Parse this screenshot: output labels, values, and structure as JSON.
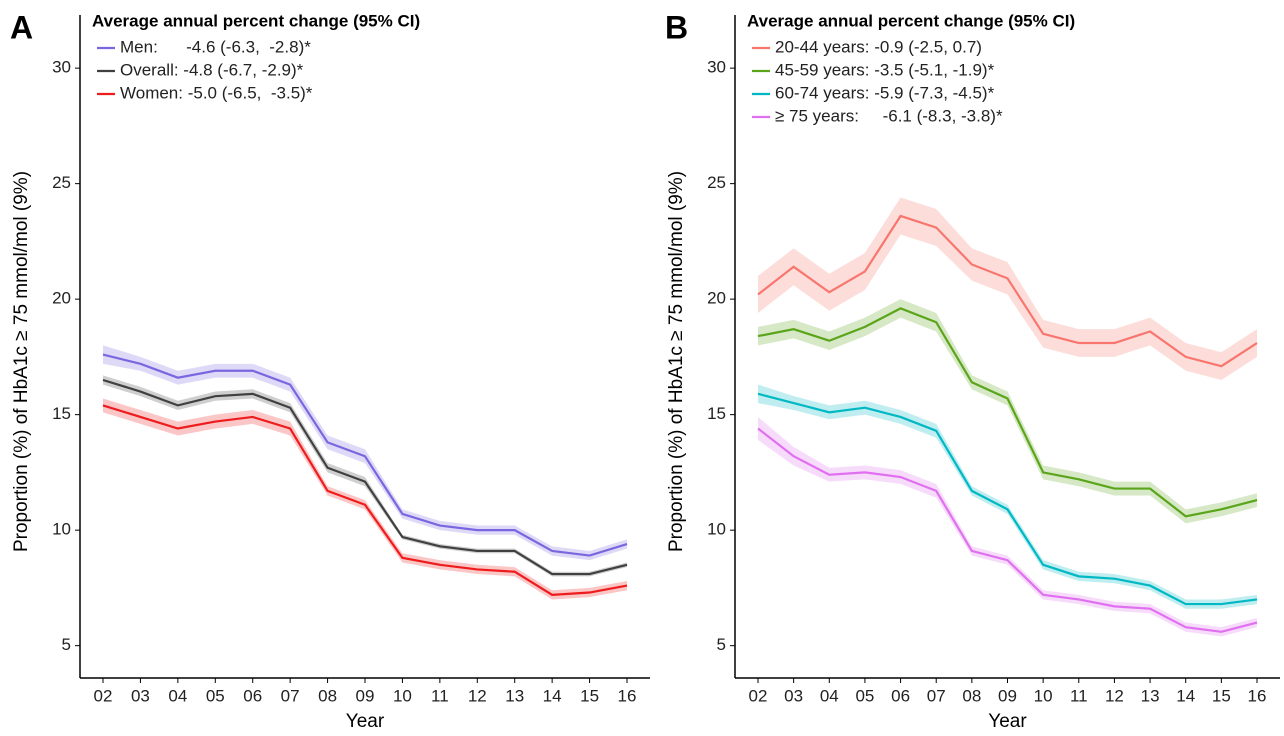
{
  "chart_data": [
    {
      "type": "line",
      "panel_label": "A",
      "legend_title": "Average annual percent change (95% CI)",
      "x_label": "Year",
      "y_label": "Proportion (%) of HbA1c ≥ 75 mmol/mol (9%)",
      "categories": [
        "02",
        "03",
        "04",
        "05",
        "06",
        "07",
        "08",
        "09",
        "10",
        "11",
        "12",
        "13",
        "14",
        "15",
        "16"
      ],
      "ylim": [
        3.6,
        32.3
      ],
      "yticks": [
        5,
        10,
        15,
        20,
        25,
        30
      ],
      "legend": "top-left",
      "series": [
        {
          "name": "Men:      -4.6 (-6.3,  -2.8)*",
          "color": "#7a67e0",
          "values": [
            17.6,
            17.2,
            16.6,
            16.9,
            16.9,
            16.3,
            13.8,
            13.2,
            10.7,
            10.2,
            10.0,
            10.0,
            9.1,
            8.9,
            9.4
          ],
          "ci_lower": [
            17.2,
            16.9,
            16.3,
            16.6,
            16.6,
            16.0,
            13.5,
            12.9,
            10.5,
            10.0,
            9.8,
            9.8,
            8.9,
            8.7,
            9.2
          ],
          "ci_upper": [
            18.0,
            17.5,
            16.9,
            17.2,
            17.2,
            16.6,
            14.1,
            13.5,
            10.9,
            10.4,
            10.2,
            10.2,
            9.3,
            9.1,
            9.6
          ]
        },
        {
          "name": "Overall: -4.8 (-6.7, -2.9)*",
          "color": "#404040",
          "values": [
            16.5,
            16.0,
            15.4,
            15.8,
            15.9,
            15.3,
            12.7,
            12.1,
            9.7,
            9.3,
            9.1,
            9.1,
            8.1,
            8.1,
            8.5
          ],
          "ci_lower": [
            16.3,
            15.8,
            15.2,
            15.6,
            15.7,
            15.1,
            12.5,
            11.9,
            9.6,
            9.2,
            9.0,
            9.0,
            8.0,
            8.0,
            8.4
          ],
          "ci_upper": [
            16.7,
            16.2,
            15.6,
            16.0,
            16.1,
            15.5,
            12.9,
            12.3,
            9.8,
            9.4,
            9.2,
            9.2,
            8.2,
            8.2,
            8.6
          ]
        },
        {
          "name": "Women: -5.0 (-6.5,  -3.5)*",
          "color": "#ee1c1c",
          "values": [
            15.4,
            14.9,
            14.4,
            14.7,
            14.9,
            14.4,
            11.7,
            11.1,
            8.8,
            8.5,
            8.3,
            8.2,
            7.2,
            7.3,
            7.6
          ],
          "ci_lower": [
            15.1,
            14.6,
            14.1,
            14.4,
            14.6,
            14.1,
            11.5,
            10.9,
            8.6,
            8.3,
            8.1,
            8.0,
            7.0,
            7.1,
            7.4
          ],
          "ci_upper": [
            15.7,
            15.2,
            14.7,
            15.0,
            15.2,
            14.7,
            11.9,
            11.3,
            9.0,
            8.7,
            8.5,
            8.4,
            7.4,
            7.5,
            7.8
          ]
        }
      ]
    },
    {
      "type": "line",
      "panel_label": "B",
      "legend_title": "Average annual percent change (95% CI)",
      "x_label": "Year",
      "y_label": "Proportion (%) of HbA1c ≥ 75 mmol/mol (9%)",
      "categories": [
        "02",
        "03",
        "04",
        "05",
        "06",
        "07",
        "08",
        "09",
        "10",
        "11",
        "12",
        "13",
        "14",
        "15",
        "16"
      ],
      "ylim": [
        3.6,
        32.3
      ],
      "yticks": [
        5,
        10,
        15,
        20,
        25,
        30
      ],
      "legend": "top-left",
      "series": [
        {
          "name": "20-44 years: -0.9 (-2.5, 0.7)",
          "color": "#f8766d",
          "values": [
            20.2,
            21.4,
            20.3,
            21.2,
            23.6,
            23.1,
            21.5,
            20.9,
            18.5,
            18.1,
            18.1,
            18.6,
            17.5,
            17.1,
            18.1
          ],
          "ci_lower": [
            19.4,
            20.6,
            19.5,
            20.4,
            22.8,
            22.3,
            20.8,
            20.2,
            17.9,
            17.5,
            17.5,
            18.0,
            16.9,
            16.5,
            17.5
          ],
          "ci_upper": [
            21.0,
            22.2,
            21.1,
            22.0,
            24.4,
            23.9,
            22.2,
            21.6,
            19.1,
            18.7,
            18.7,
            19.2,
            18.1,
            17.7,
            18.7
          ]
        },
        {
          "name": "45-59 years: -3.5 (-5.1, -1.9)*",
          "color": "#5aa51a",
          "values": [
            18.4,
            18.7,
            18.2,
            18.8,
            19.6,
            19.0,
            16.4,
            15.7,
            12.5,
            12.2,
            11.8,
            11.8,
            10.6,
            10.9,
            11.3
          ],
          "ci_lower": [
            18.0,
            18.3,
            17.8,
            18.4,
            19.2,
            18.6,
            16.1,
            15.4,
            12.2,
            11.9,
            11.5,
            11.5,
            10.3,
            10.6,
            11.0
          ],
          "ci_upper": [
            18.8,
            19.1,
            18.6,
            19.2,
            20.0,
            19.4,
            16.7,
            16.0,
            12.8,
            12.5,
            12.1,
            12.1,
            10.9,
            11.2,
            11.6
          ]
        },
        {
          "name": "60-74 years: -5.9 (-7.3, -4.5)*",
          "color": "#00b8c4",
          "values": [
            15.9,
            15.5,
            15.1,
            15.3,
            14.9,
            14.3,
            11.7,
            10.9,
            8.5,
            8.0,
            7.9,
            7.6,
            6.8,
            6.8,
            7.0
          ],
          "ci_lower": [
            15.5,
            15.2,
            14.8,
            15.0,
            14.6,
            14.0,
            11.5,
            10.7,
            8.3,
            7.8,
            7.7,
            7.4,
            6.6,
            6.6,
            6.8
          ],
          "ci_upper": [
            16.3,
            15.8,
            15.4,
            15.6,
            15.2,
            14.6,
            11.9,
            11.1,
            8.7,
            8.2,
            8.1,
            7.8,
            7.0,
            7.0,
            7.2
          ]
        },
        {
          "name": "≥ 75 years:     -6.1 (-8.3, -3.8)*",
          "color": "#e070f0",
          "values": [
            14.4,
            13.2,
            12.4,
            12.5,
            12.3,
            11.7,
            9.1,
            8.7,
            7.2,
            7.0,
            6.7,
            6.6,
            5.8,
            5.6,
            6.0
          ],
          "ci_lower": [
            13.9,
            12.8,
            12.1,
            12.2,
            12.0,
            11.4,
            8.9,
            8.5,
            7.0,
            6.8,
            6.5,
            6.4,
            5.6,
            5.4,
            5.8
          ],
          "ci_upper": [
            14.9,
            13.6,
            12.7,
            12.8,
            12.6,
            12.0,
            9.3,
            8.9,
            7.4,
            7.2,
            6.9,
            6.8,
            6.0,
            5.8,
            6.2
          ]
        }
      ]
    }
  ]
}
